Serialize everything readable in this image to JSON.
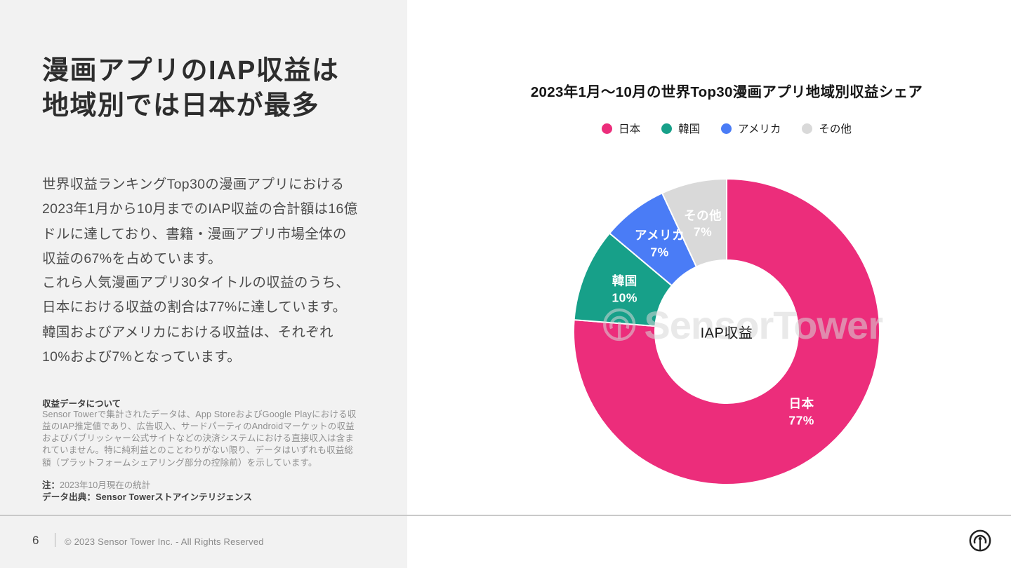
{
  "left": {
    "title": "漫画アプリのIAP収益は\n地域別では日本が最多",
    "p1": "世界収益ランキングTop30の漫画アプリにおける2023年1月から10月までのIAP収益の合計額は16億ドルに達しており、書籍・漫画アプリ市場全体の収益の67%を占めています。",
    "p2": "これら人気漫画アプリ30タイトルの収益のうち、日本における収益の割合は77%に達しています。韓国およびアメリカにおける収益は、それぞれ10%および7%となっています。",
    "footnote_heading": "収益データについて",
    "footnote_body": "Sensor Towerで集計されたデータは、App StoreおよびGoogle Playにおける収益のIAP推定値であり、広告収入、サードパーティのAndroidマーケットの収益およびパブリッシャー公式サイトなどの決済システムにおける直接収入は含まれていません。特に純利益とのことわりがない限り、データはいずれも収益総額（プラットフォームシェアリング部分の控除前）を示しています。",
    "note_label": "注：",
    "note_text": "2023年10月現在の統計",
    "source_line": "データ出典：Sensor Towerストアインテリジェンス"
  },
  "footer": {
    "page_number": "6",
    "copyright": "© 2023 Sensor Tower Inc. - All Rights Reserved"
  },
  "watermark": {
    "text": "SensorTower"
  },
  "colors": {
    "left_panel_bg": "#F2F2F2",
    "japan_pink": "#EC2D7B",
    "korea_teal": "#17A089",
    "us_blue": "#4A7CF6",
    "other_gray": "#D9D9D9"
  },
  "chart_data": {
    "type": "pie",
    "subtype": "donut",
    "title": "2023年1月〜10月の世界Top30漫画アプリ地域別収益シェア",
    "center_label": "IAP収益",
    "legend_position": "top",
    "start_angle_deg": 0,
    "direction": "clockwise",
    "outer_radius": 218,
    "inner_radius": 102,
    "label_radius": 157,
    "categories": [
      "日本",
      "韓国",
      "アメリカ",
      "その他"
    ],
    "values": [
      77,
      10,
      7,
      7
    ],
    "segments": [
      {
        "label": "日本",
        "value": 77,
        "display": "77%",
        "color": "#EC2D7B"
      },
      {
        "label": "韓国",
        "value": 10,
        "display": "10%",
        "color": "#17A089"
      },
      {
        "label": "アメリカ",
        "value": 7,
        "display": "7%",
        "color": "#4A7CF6"
      },
      {
        "label": "その他",
        "value": 7,
        "display": "7%",
        "color": "#D9D9D9"
      }
    ]
  }
}
